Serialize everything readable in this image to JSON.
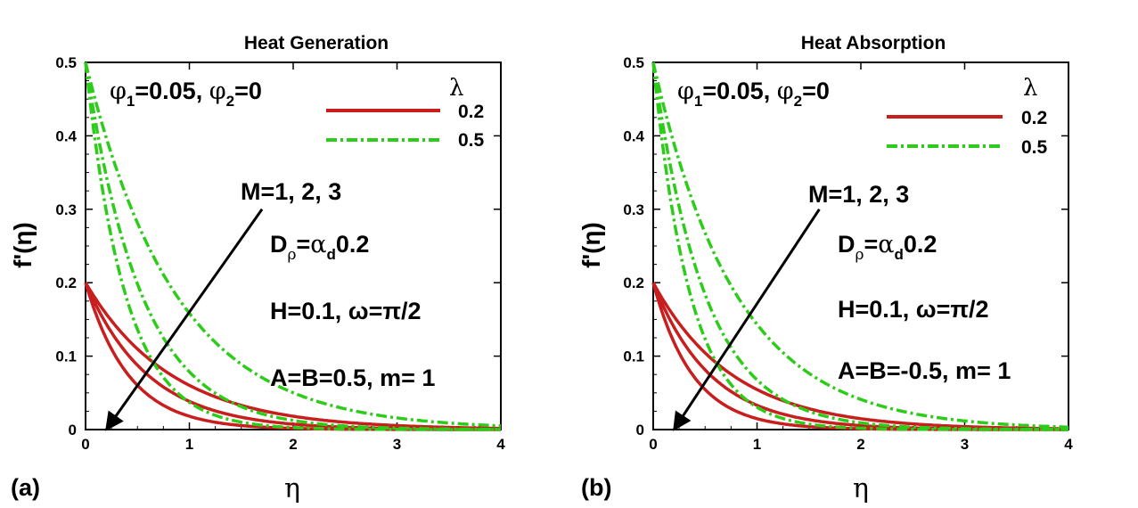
{
  "chart_data": [
    {
      "type": "line",
      "panel_label": "(a)",
      "title": "Heat Generation",
      "xlabel": "η",
      "ylabel": "f'(η)",
      "xlim": [
        0,
        4
      ],
      "ylim": [
        0,
        0.5
      ],
      "xticks": [
        0,
        1,
        2,
        3,
        4
      ],
      "xtick_labels": [
        "0",
        "1",
        "2",
        "3",
        "4"
      ],
      "yticks": [
        0,
        0.1,
        0.2,
        0.3,
        0.4,
        0.5
      ],
      "ytick_labels": [
        "0",
        "0.1",
        "0.2",
        "0.3",
        "0.4",
        "0.5"
      ],
      "params": {
        "label": "φ1=0.05, φ2=0",
        "phi1": "0.05",
        "phi2": "0"
      },
      "annotations": {
        "M": "M=1, 2, 3",
        "D_rho": "0.2",
        "H_omega": "H=0.1, ω=π/2",
        "AB": "A=B=0.5, m= 1"
      },
      "legend": {
        "title": "λ",
        "entries": [
          "0.2",
          "0.5"
        ]
      },
      "series": [
        {
          "name": "λ=0.2, M=1",
          "lambda": 0.2,
          "M": 1,
          "f0": 0.2,
          "decay": 1.2,
          "style": "solid",
          "color": "#c81e1e"
        },
        {
          "name": "λ=0.2, M=2",
          "lambda": 0.2,
          "M": 2,
          "f0": 0.2,
          "decay": 1.65,
          "style": "solid",
          "color": "#c81e1e"
        },
        {
          "name": "λ=0.2, M=3",
          "lambda": 0.2,
          "M": 3,
          "f0": 0.2,
          "decay": 2.4,
          "style": "solid",
          "color": "#c81e1e"
        },
        {
          "name": "λ=0.5, M=1",
          "lambda": 0.5,
          "M": 1,
          "f0": 0.5,
          "decay": 1.15,
          "style": "dashdot",
          "color": "#2ecc1a"
        },
        {
          "name": "λ=0.5, M=2",
          "lambda": 0.5,
          "M": 2,
          "f0": 0.5,
          "decay": 1.85,
          "style": "dashdot",
          "color": "#2ecc1a"
        },
        {
          "name": "λ=0.5, M=3",
          "lambda": 0.5,
          "M": 3,
          "f0": 0.5,
          "decay": 2.6,
          "style": "dashdot",
          "color": "#2ecc1a"
        }
      ],
      "arrow": {
        "from": [
          1.7,
          0.3
        ],
        "to": [
          0.2,
          0.0
        ]
      }
    },
    {
      "type": "line",
      "panel_label": "(b)",
      "title": "Heat Absorption",
      "xlabel": "η",
      "ylabel": "f'(η)",
      "xlim": [
        0,
        4
      ],
      "ylim": [
        0,
        0.5
      ],
      "xticks": [
        0,
        1,
        2,
        3,
        4
      ],
      "xtick_labels": [
        "0",
        "1",
        "2",
        "3",
        "4"
      ],
      "yticks": [
        0,
        0.1,
        0.2,
        0.3,
        0.4,
        0.5
      ],
      "ytick_labels": [
        "0",
        "0.1",
        "0.2",
        "0.3",
        "0.4",
        "0.5"
      ],
      "params": {
        "label": "φ1=0.05, φ2=0",
        "phi1": "0.05",
        "phi2": "0"
      },
      "annotations": {
        "M": "M=1, 2, 3",
        "D_rho": "0.2",
        "H_omega": "H=0.1, ω=π/2",
        "AB": "A=B=-0.5, m= 1"
      },
      "legend": {
        "title": "λ",
        "entries": [
          "0.2",
          "0.5"
        ]
      },
      "series": [
        {
          "name": "λ=0.2, M=1",
          "lambda": 0.2,
          "M": 1,
          "f0": 0.2,
          "decay": 1.3,
          "style": "solid",
          "color": "#c81e1e"
        },
        {
          "name": "λ=0.2, M=2",
          "lambda": 0.2,
          "M": 2,
          "f0": 0.2,
          "decay": 1.8,
          "style": "solid",
          "color": "#c81e1e"
        },
        {
          "name": "λ=0.2, M=3",
          "lambda": 0.2,
          "M": 3,
          "f0": 0.2,
          "decay": 2.6,
          "style": "solid",
          "color": "#c81e1e"
        },
        {
          "name": "λ=0.5, M=1",
          "lambda": 0.5,
          "M": 1,
          "f0": 0.5,
          "decay": 1.25,
          "style": "dashdot",
          "color": "#2ecc1a"
        },
        {
          "name": "λ=0.5, M=2",
          "lambda": 0.5,
          "M": 2,
          "f0": 0.5,
          "decay": 2.0,
          "style": "dashdot",
          "color": "#2ecc1a"
        },
        {
          "name": "λ=0.5, M=3",
          "lambda": 0.5,
          "M": 3,
          "f0": 0.5,
          "decay": 2.8,
          "style": "dashdot",
          "color": "#2ecc1a"
        }
      ],
      "arrow": {
        "from": [
          1.6,
          0.3
        ],
        "to": [
          0.2,
          0.0
        ]
      }
    }
  ]
}
